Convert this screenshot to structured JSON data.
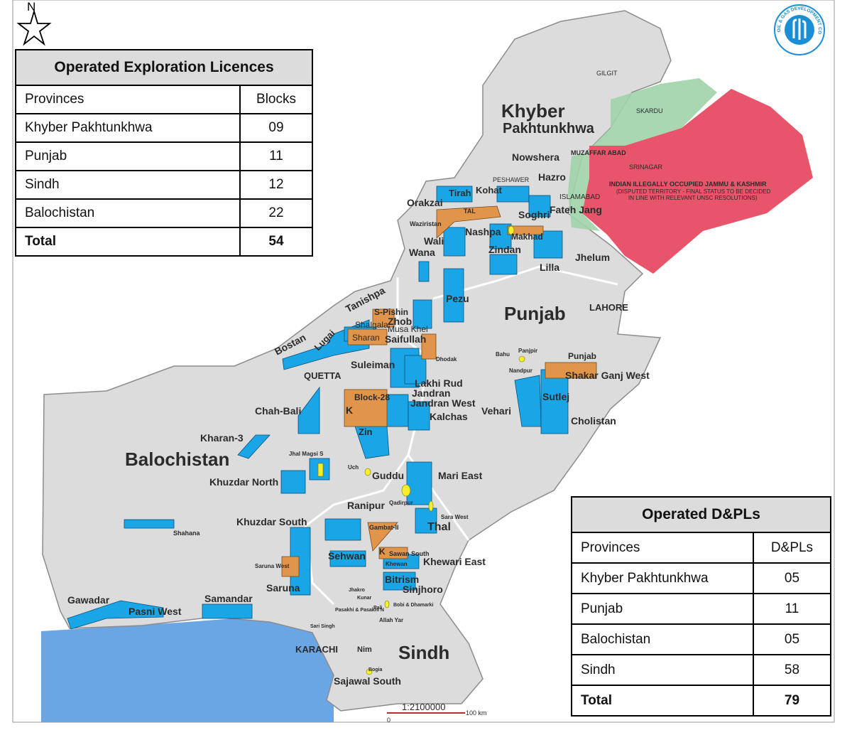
{
  "exploration_table": {
    "title": "Operated Exploration Licences",
    "col_province": "Provinces",
    "col_value": "Blocks",
    "rows": [
      {
        "province": "Khyber Pakhtunkhwa",
        "value": "09"
      },
      {
        "province": "Punjab",
        "value": "11"
      },
      {
        "province": "Sindh",
        "value": "12"
      },
      {
        "province": "Balochistan",
        "value": "22"
      }
    ],
    "total_label": "Total",
    "total_value": "54"
  },
  "dpl_table": {
    "title": "Operated D&PLs",
    "col_province": "Provinces",
    "col_value": "D&PLs",
    "rows": [
      {
        "province": "Khyber Pakhtunkhwa",
        "value": "05"
      },
      {
        "province": "Punjab",
        "value": "11"
      },
      {
        "province": "Balochistan",
        "value": "05"
      },
      {
        "province": "Sindh",
        "value": "58"
      }
    ],
    "total_label": "Total",
    "total_value": "79"
  },
  "compass_label": "N",
  "scale": {
    "ratio": "1:2100000",
    "end_label": "100 km"
  },
  "logo_text": "OIL & GAS DEVELOPMENT COMPANY LIMITED",
  "provinces": {
    "kp": [
      "Khyber",
      "Pakhtunkhwa"
    ],
    "punjab": "Punjab",
    "balochistan": "Balochistan",
    "sindh": "Sindh"
  },
  "cities": {
    "gilgit": "GILGIT",
    "skardu": "SKARDU",
    "muzaffarabad": "MUZAFFAR ABAD",
    "srinagar": "SRINAGAR",
    "peshawar": "PESHAWER",
    "islamabad": "ISLAMABAD",
    "lahore": "LAHORE",
    "quetta": "QUETTA",
    "karachi": "KARACHI"
  },
  "disputed": {
    "title": "INDIAN ILLEGALLY OCCUPIED JAMMU & KASHMIR",
    "line1": "(DISPUTED TERRITORY - FINAL STATUS TO BE DECIDED",
    "line2": "IN LINE WITH RELEVANT UNSC RESOLUTIONS)"
  },
  "blocks": {
    "nowshera": "Nowshera",
    "hazro": "Hazro",
    "tirah": "Tirah",
    "kohat": "Kohat",
    "orakzai": "Orakzai",
    "tal": "TAL",
    "soghri": "Soghri",
    "fateh_jang": "Fateh Jang",
    "waziristan": "Waziristan",
    "nashpa": "Nashpa",
    "makhad": "Makhad",
    "wali": "Wali",
    "zindan": "Zindan",
    "jhelum": "Jhelum",
    "wana": "Wana",
    "lilla": "Lilla",
    "pezu": "Pezu",
    "tanishpa": "Tanishpa",
    "s_pishin": "S-Pishin",
    "zhob": "Zhob",
    "shalgala": "Shalgala",
    "musa_khel": "Musa Khel",
    "sharan": "Sharan",
    "saifullah": "Saifullah",
    "bostan": "Bostan",
    "lugai": "Lugai",
    "dhodak": "Dhodak",
    "bahu": "Bahu",
    "panjpir": "Panjpir",
    "nandpur": "Nandpur",
    "punjab_blk": "Punjab",
    "shakar_ganj": "Shakar Ganj West",
    "suleiman": "Suleiman",
    "lakhi_rud": "Lakhi Rud",
    "jandran": "Jandran",
    "jandran_west": "Jandran West",
    "kalchas": "Kalchas",
    "vehari": "Vehari",
    "sutlej": "Sutlej",
    "cholistan": "Cholistan",
    "block28": "Block-28",
    "k": "K",
    "chah_bali": "Chah-Bali",
    "zin": "Zin",
    "kharan3": "Kharan-3",
    "jhal_magsi": "Jhal Magsi S",
    "uch": "Uch",
    "guddu": "Guddu",
    "mari_east": "Mari East",
    "khuzdar_north": "Khuzdar North",
    "qadirpur": "Qadirpur",
    "ranipur": "Ranipur",
    "sara_west": "Sara West",
    "thal": "Thal",
    "khuzdar_south": "Khuzdar South",
    "shahana": "Shahana",
    "gambat": "Gambat-II",
    "sehwan": "Sehwan",
    "kk": "K",
    "sawan_south": "Sawan South",
    "khewan": "Khewan",
    "khewari_east": "Khewari East",
    "saruna_west": "Saruna West",
    "saruna": "Saruna",
    "bitrism": "Bitrism",
    "sinjhoro": "Sinjhoro",
    "jhakro": "Jhakro",
    "kunar": "Kunar",
    "bobi": "Bobi & Dhamarki",
    "pasakhi": "Pasakhi & Pasakhi N",
    "pali": "Pali",
    "gawadar": "Gawadar",
    "pasni_west": "Pasni West",
    "samandar": "Samandar",
    "allah_yar": "Allah Yar",
    "sari_singh": "Sari Singh",
    "nim": "Nim",
    "bogia": "Bogia",
    "sajawal_south": "Sajawal South"
  },
  "colors": {
    "land": "#dcdcdc",
    "ocean": "#6aa5e4",
    "exploration_block": "#1aa6e6",
    "dpl_block": "#e0954a",
    "field": "#f5ee2a",
    "disputed": "#e8556b",
    "gilgit_region": "#9ed3a8",
    "city_label": "#2e9b3e"
  }
}
